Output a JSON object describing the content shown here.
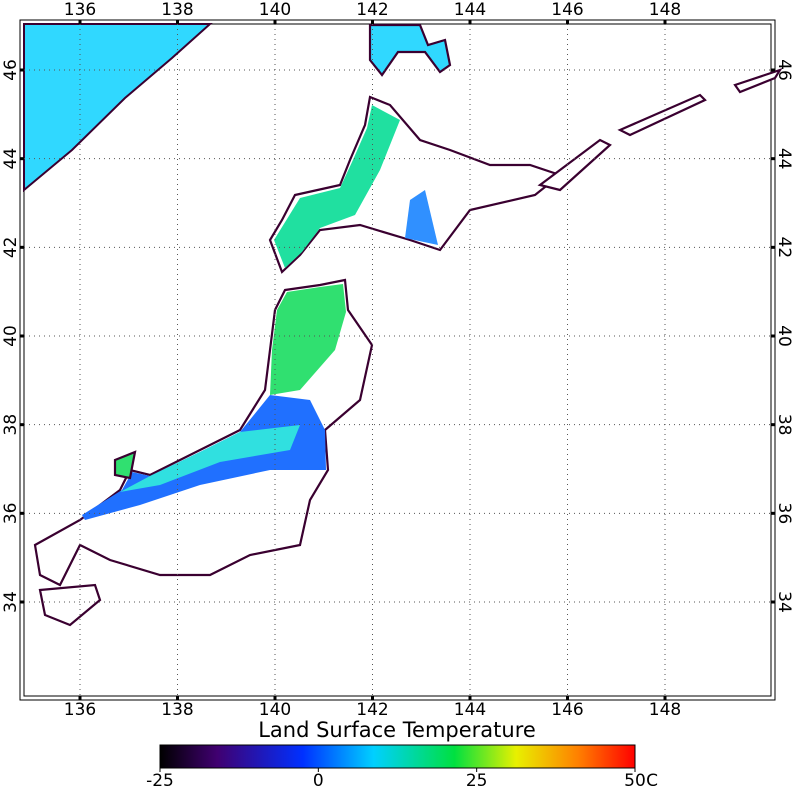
{
  "map": {
    "title": "Land Surface Temperature",
    "lon_ticks": [
      136,
      138,
      140,
      142,
      144,
      146,
      148
    ],
    "lat_ticks": [
      34,
      36,
      38,
      40,
      42,
      44,
      46
    ],
    "colorbar": {
      "ticks": [
        -25,
        0,
        25,
        50
      ],
      "unit": "C"
    }
  }
}
